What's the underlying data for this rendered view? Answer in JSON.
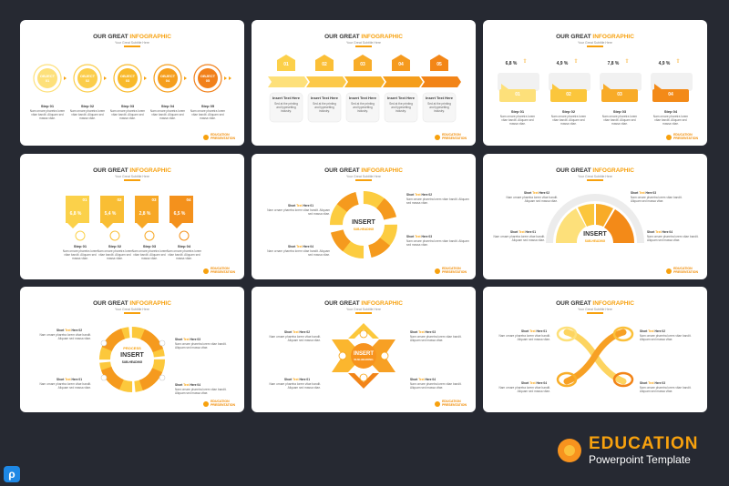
{
  "slide_title": {
    "part1": "OUR GREAT",
    "part2": "INFOGRAPHIC"
  },
  "slide_subtitle": "Your Great Subtitle Here",
  "logo": {
    "line1": "EDUCATION",
    "line2": "PRESENTATION"
  },
  "lorem": "Nam ornare pharetra lorem vitae bandit. Aliquam sed massa vitae.",
  "lorem_short": "Sed at the printing and typesetting industry.",
  "slide1": {
    "objects": [
      "OBJECT 01",
      "OBJECT 02",
      "OBJECT 03",
      "OBJECT 04",
      "OBJECT 05"
    ],
    "steps": [
      "Step 01",
      "Step 02",
      "Step 03",
      "Step 04",
      "Step 05"
    ]
  },
  "slide2": {
    "numbers": [
      "01",
      "02",
      "03",
      "04",
      "05"
    ],
    "heading": "Insert Text Here"
  },
  "slide3": {
    "values": [
      "6,8 %",
      "4,9 %",
      "7,8 %",
      "4,9 %"
    ],
    "numbers": [
      "01",
      "02",
      "03",
      "04"
    ],
    "steps": [
      "Step 01",
      "Step 02",
      "Step 03",
      "Step 04"
    ]
  },
  "slide4": {
    "values": [
      "6,8 %",
      "5,4 %",
      "2,8 %",
      "6,5 %"
    ],
    "numbers": [
      "01",
      "02",
      "03",
      "04"
    ],
    "steps": [
      "Step 01",
      "Step 02",
      "Step 03",
      "Step 04"
    ]
  },
  "short_text": {
    "a": "Short",
    "b": "Text",
    "c": "Here"
  },
  "labels": {
    "l01": "01",
    "l02": "02",
    "l03": "03",
    "l04": "04"
  },
  "center": {
    "insert": "INSERT",
    "sub": "SUB-HEADING",
    "process": "PROCESS"
  },
  "watermark": {
    "brand": "EDUCATION",
    "product": "Powerpoint Template"
  }
}
